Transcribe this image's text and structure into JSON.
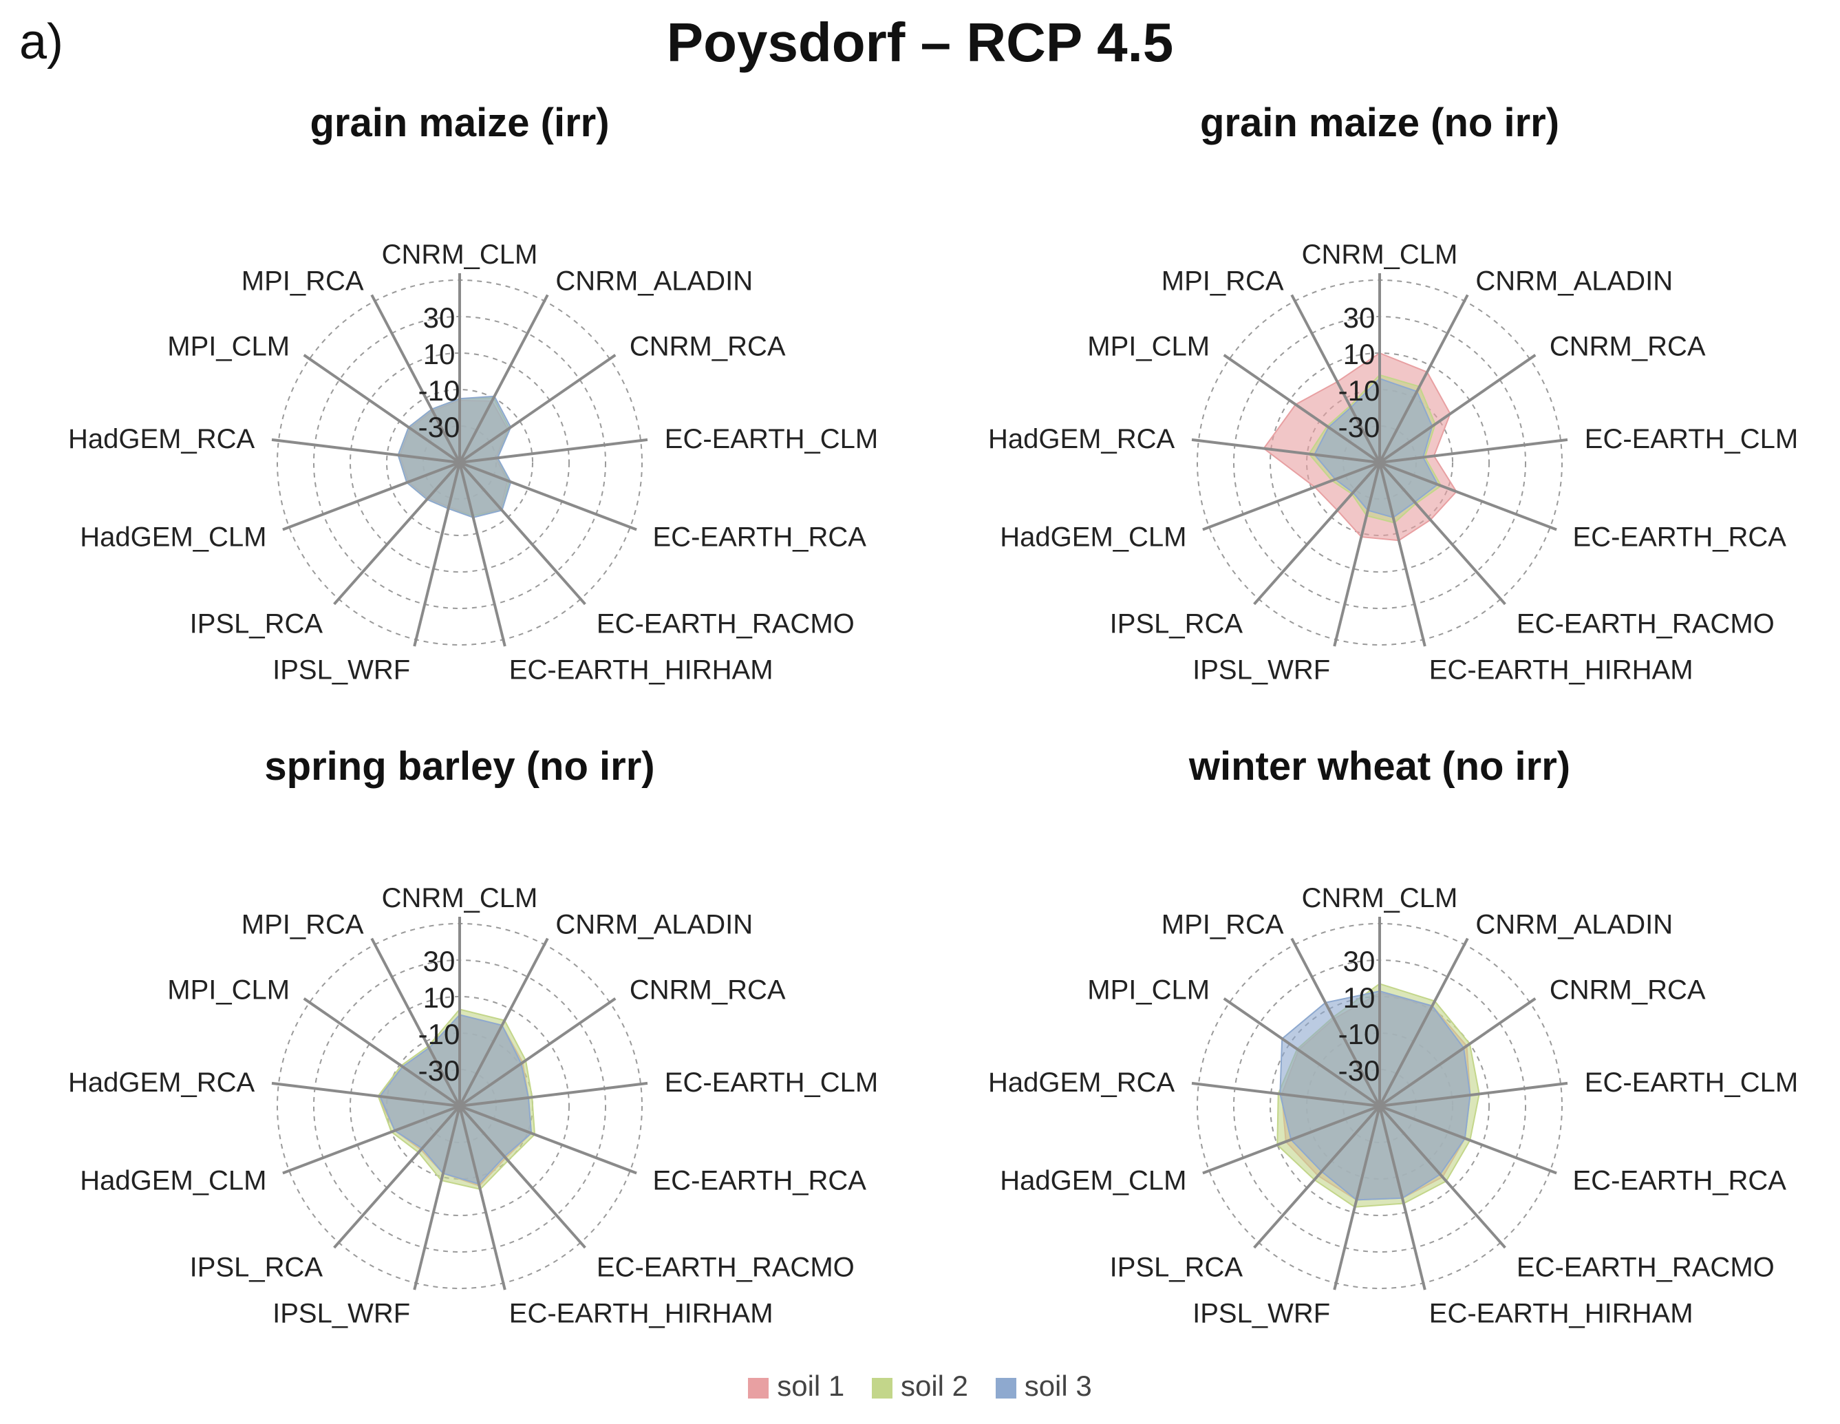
{
  "panel_label": "a)",
  "title": "Poysdorf – RCP 4.5",
  "colors": {
    "soil1": "#e8a0a2",
    "soil2": "#c3d68a",
    "soil3": "#8ea9cf"
  },
  "legend": [
    {
      "label": "soil 1",
      "color": "#e8a0a2"
    },
    {
      "label": "soil 2",
      "color": "#c3d68a"
    },
    {
      "label": "soil 3",
      "color": "#8ea9cf"
    }
  ],
  "chart_data": [
    {
      "type": "radar",
      "title": "grain maize (irr)",
      "axes": [
        "CNRM_CLM",
        "CNRM_ALADIN",
        "CNRM_RCA",
        "EC-EARTH_CLM",
        "EC-EARTH_RCA",
        "EC-EARTH_RACMO",
        "EC-EARTH_HIRHAM",
        "IPSL_WRF",
        "IPSL_RCA",
        "HadGEM_CLM",
        "HadGEM_RCA",
        "MPI_CLM",
        "MPI_RCA"
      ],
      "rlim": [
        -50,
        50
      ],
      "ticks": [
        -30,
        -10,
        10,
        30
      ],
      "series": [
        {
          "name": "soil 1",
          "values": [
            -16,
            -12,
            -18,
            -30,
            -22,
            -16,
            -20,
            -25,
            -24,
            -20,
            -17,
            -17,
            -18
          ]
        },
        {
          "name": "soil 2",
          "values": [
            -15,
            -10,
            -17,
            -29,
            -21,
            -15,
            -20,
            -24,
            -23,
            -19,
            -16,
            -16,
            -17
          ]
        },
        {
          "name": "soil 3",
          "values": [
            -15,
            -9,
            -16,
            -29,
            -20,
            -15,
            -19,
            -24,
            -23,
            -19,
            -16,
            -16,
            -17
          ]
        }
      ]
    },
    {
      "type": "radar",
      "title": "grain maize (no irr)",
      "axes": [
        "CNRM_CLM",
        "CNRM_ALADIN",
        "CNRM_RCA",
        "EC-EARTH_CLM",
        "EC-EARTH_RCA",
        "EC-EARTH_RACMO",
        "EC-EARTH_HIRHAM",
        "IPSL_WRF",
        "IPSL_RCA",
        "HadGEM_CLM",
        "HadGEM_RCA",
        "MPI_CLM",
        "MPI_RCA"
      ],
      "rlim": [
        -50,
        50
      ],
      "ticks": [
        -30,
        -10,
        10,
        30
      ],
      "series": [
        {
          "name": "soil 1",
          "values": [
            10,
            6,
            -3,
            -20,
            -5,
            -8,
            -6,
            -8,
            -15,
            -12,
            14,
            6,
            0
          ]
        },
        {
          "name": "soil 2",
          "values": [
            -2,
            -3,
            -13,
            -25,
            -14,
            -20,
            -16,
            -20,
            -27,
            -22,
            -11,
            -15,
            -15
          ]
        },
        {
          "name": "soil 3",
          "values": [
            -4,
            -6,
            -15,
            -26,
            -16,
            -21,
            -19,
            -23,
            -28,
            -24,
            -14,
            -16,
            -16
          ]
        }
      ]
    },
    {
      "type": "radar",
      "title": "spring barley (no irr)",
      "axes": [
        "CNRM_CLM",
        "CNRM_ALADIN",
        "CNRM_RCA",
        "EC-EARTH_CLM",
        "EC-EARTH_RCA",
        "EC-EARTH_RACMO",
        "EC-EARTH_HIRHAM",
        "IPSL_WRF",
        "IPSL_RCA",
        "HadGEM_CLM",
        "HadGEM_RCA",
        "MPI_CLM",
        "MPI_RCA"
      ],
      "rlim": [
        -50,
        50
      ],
      "ticks": [
        -30,
        -10,
        10,
        30
      ],
      "series": [
        {
          "name": "soil 1",
          "values": [
            0,
            0,
            -8,
            -12,
            -8,
            -12,
            -5,
            -12,
            -18,
            -12,
            -5,
            -12,
            -14
          ]
        },
        {
          "name": "soil 2",
          "values": [
            3,
            3,
            -6,
            -10,
            -6,
            -10,
            -3,
            -8,
            -16,
            -10,
            -5,
            -11,
            -13
          ]
        },
        {
          "name": "soil 3",
          "values": [
            0,
            0,
            -9,
            -12,
            -8,
            -13,
            -6,
            -12,
            -19,
            -12,
            -6,
            -12,
            -14
          ]
        }
      ]
    },
    {
      "type": "radar",
      "title": "winter wheat (no irr)",
      "axes": [
        "CNRM_CLM",
        "CNRM_ALADIN",
        "CNRM_RCA",
        "EC-EARTH_CLM",
        "EC-EARTH_RCA",
        "EC-EARTH_RACMO",
        "EC-EARTH_HIRHAM",
        "IPSL_WRF",
        "IPSL_RCA",
        "HadGEM_CLM",
        "HadGEM_RCA",
        "MPI_CLM",
        "MPI_RCA"
      ],
      "rlim": [
        -50,
        50
      ],
      "ticks": [
        -30,
        -10,
        10,
        30
      ],
      "series": [
        {
          "name": "soil 1",
          "values": [
            12,
            12,
            8,
            0,
            0,
            2,
            2,
            3,
            1,
            5,
            4,
            4,
            4
          ]
        },
        {
          "name": "soil 2",
          "values": [
            17,
            15,
            10,
            5,
            3,
            5,
            5,
            7,
            4,
            10,
            6,
            5,
            5
          ]
        },
        {
          "name": "soil 3",
          "values": [
            13,
            12,
            6,
            0,
            0,
            0,
            2,
            3,
            -2,
            2,
            5,
            15,
            14
          ]
        }
      ]
    }
  ]
}
